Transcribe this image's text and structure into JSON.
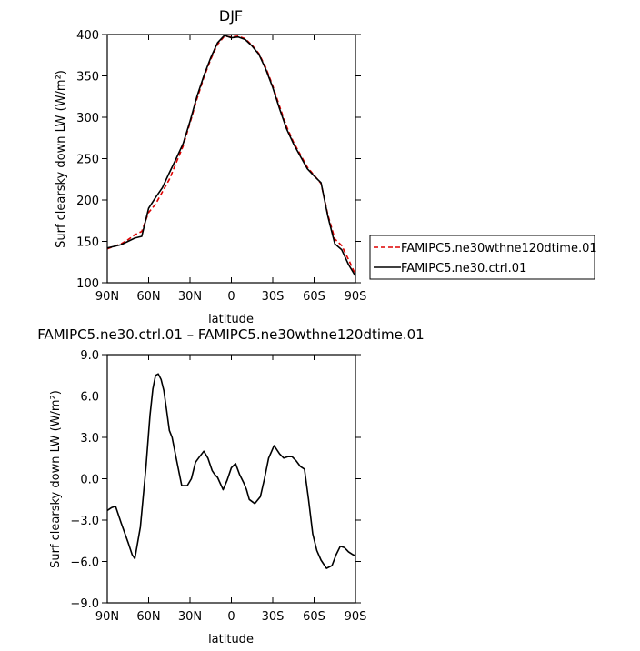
{
  "chart_data": [
    {
      "type": "line",
      "title": "DJF",
      "xlabel": "latitude",
      "ylabel": "Surf clearsky down LW (W/m²)",
      "xlim": [
        -90,
        90
      ],
      "ylim": [
        100,
        400
      ],
      "xticks": [
        -90,
        -60,
        -30,
        0,
        30,
        60,
        90
      ],
      "xtick_labels": [
        "90N",
        "60N",
        "30N",
        "0",
        "30S",
        "60S",
        "90S"
      ],
      "yticks": [
        100,
        150,
        200,
        250,
        300,
        350,
        400
      ],
      "ytick_labels": [
        "100",
        "150",
        "200",
        "250",
        "300",
        "350",
        "400"
      ],
      "grid": false,
      "legend_position": "right, outside plot",
      "series": [
        {
          "name": "FAMIPC5.ne30wthne120dtime.01",
          "color": "#dd0000",
          "dash": "dashed",
          "x": [
            -90,
            -85,
            -80,
            -75,
            -70,
            -65,
            -60,
            -55,
            -50,
            -45,
            -40,
            -35,
            -30,
            -25,
            -20,
            -15,
            -10,
            -5,
            0,
            5,
            10,
            15,
            20,
            25,
            30,
            35,
            40,
            45,
            50,
            55,
            60,
            65,
            70,
            75,
            80,
            85,
            90
          ],
          "y": [
            141,
            144,
            147,
            152,
            158,
            162,
            185,
            195,
            210,
            225,
            245,
            265,
            293,
            322,
            348,
            370,
            388,
            398,
            397,
            398,
            395,
            387,
            377,
            360,
            338,
            313,
            289,
            270,
            255,
            240,
            230,
            220,
            182,
            153,
            145,
            128,
            110
          ]
        },
        {
          "name": "FAMIPC5.ne30.ctrl.01",
          "color": "#000000",
          "dash": "solid",
          "x": [
            -90,
            -85,
            -80,
            -75,
            -70,
            -65,
            -60,
            -55,
            -50,
            -45,
            -40,
            -35,
            -30,
            -25,
            -20,
            -15,
            -10,
            -5,
            0,
            5,
            10,
            15,
            20,
            25,
            30,
            35,
            40,
            45,
            50,
            55,
            60,
            65,
            70,
            75,
            80,
            85,
            90
          ],
          "y": [
            142,
            144,
            146,
            150,
            154,
            156,
            190,
            203,
            215,
            233,
            250,
            268,
            295,
            325,
            350,
            372,
            390,
            399,
            396,
            397,
            394,
            386,
            376,
            358,
            336,
            310,
            286,
            268,
            253,
            238,
            229,
            221,
            180,
            147,
            140,
            122,
            108
          ]
        }
      ]
    },
    {
      "type": "line",
      "title": "FAMIPC5.ne30.ctrl.01 – FAMIPC5.ne30wthne120dtime.01",
      "xlabel": "latitude",
      "ylabel": "Surf clearsky down LW (W/m²)",
      "xlim": [
        -90,
        90
      ],
      "ylim": [
        -9,
        9
      ],
      "xticks": [
        -90,
        -60,
        -30,
        0,
        30,
        60,
        90
      ],
      "xtick_labels": [
        "90N",
        "60N",
        "30N",
        "0",
        "30S",
        "60S",
        "90S"
      ],
      "yticks": [
        -9,
        -6,
        -3,
        0,
        3,
        6,
        9
      ],
      "ytick_labels": [
        "−9.0",
        "−6.0",
        "−3.0",
        "0.0",
        "3.0",
        "6.0",
        "9.0"
      ],
      "grid": false,
      "series": [
        {
          "color": "#000000",
          "dash": "solid",
          "x": [
            -90,
            -87,
            -84,
            -80,
            -75,
            -72,
            -70,
            -66,
            -62,
            -59,
            -57,
            -55,
            -53,
            -51,
            -49,
            -47,
            -45,
            -43,
            -40,
            -36,
            -32,
            -29,
            -26,
            -23,
            -20,
            -17,
            -14,
            -12,
            -10,
            -6,
            -3,
            0,
            3,
            6,
            9,
            11,
            13,
            17,
            21,
            24,
            27,
            31,
            35,
            38,
            41,
            44,
            47,
            50,
            53,
            56,
            59,
            62,
            65,
            69,
            73,
            76,
            79,
            82,
            85,
            88,
            90
          ],
          "y": [
            -2.3,
            -2.1,
            -2.0,
            -3.2,
            -4.6,
            -5.5,
            -5.8,
            -3.5,
            0.8,
            4.6,
            6.5,
            7.5,
            7.6,
            7.2,
            6.4,
            5.0,
            3.5,
            3.0,
            1.5,
            -0.5,
            -0.5,
            0.0,
            1.2,
            1.6,
            2.0,
            1.5,
            0.6,
            0.3,
            0.1,
            -0.8,
            -0.1,
            0.8,
            1.1,
            0.3,
            -0.3,
            -0.8,
            -1.5,
            -1.8,
            -1.3,
            0.0,
            1.5,
            2.4,
            1.8,
            1.5,
            1.6,
            1.6,
            1.3,
            0.9,
            0.7,
            -1.5,
            -4.0,
            -5.2,
            -5.9,
            -6.5,
            -6.3,
            -5.5,
            -4.9,
            -5.0,
            -5.3,
            -5.5,
            -5.6
          ]
        }
      ]
    }
  ]
}
